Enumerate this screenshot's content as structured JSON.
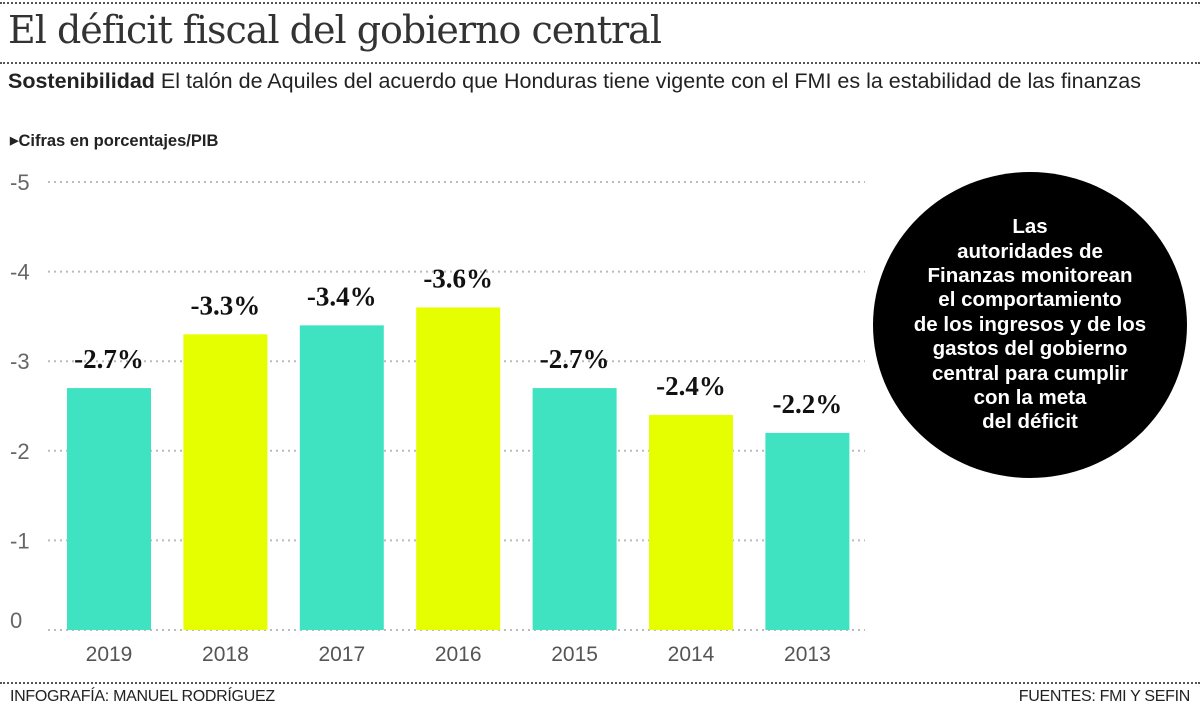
{
  "title": "El déficit fiscal del gobierno central",
  "subtitle_lead": "Sostenibilidad",
  "subtitle_text": "El talón de Aquiles del acuerdo que Honduras tiene vigente con el FMI es la estabilidad de las finanzas",
  "units_note": "Cifras en porcentajes/PIB",
  "callout": "Las\nautoridades de\nFinanzas monitorean\nel comportamiento\nde los ingresos y de los\ngastos del gobierno\ncentral para cumplir\ncon la meta\ndel déficit",
  "footer_left": "INFOGRAFÍA: MANUEL RODRÍGUEZ",
  "footer_right": "FUENTES: FMI Y SEFIN",
  "colors": {
    "teal": "#3fe3c2",
    "yellow": "#e5ff00",
    "callout_bg": "#000000"
  },
  "chart_data": {
    "type": "bar",
    "title": "El déficit fiscal del gobierno central",
    "xlabel": "",
    "ylabel": "",
    "categories": [
      "2019",
      "2018",
      "2017",
      "2016",
      "2015",
      "2014",
      "2013"
    ],
    "values": [
      -2.7,
      -3.3,
      -3.4,
      -3.6,
      -2.7,
      -2.4,
      -2.2
    ],
    "data_labels": [
      "-2.7%",
      "-3.3%",
      "-3.4%",
      "-3.6%",
      "-2.7%",
      "-2.4%",
      "-2.2%"
    ],
    "bar_colors": [
      "#3fe3c2",
      "#e5ff00",
      "#3fe3c2",
      "#e5ff00",
      "#3fe3c2",
      "#e5ff00",
      "#3fe3c2"
    ],
    "yticks": [
      "-5",
      "-4",
      "-3",
      "-2",
      "-1",
      "0"
    ],
    "ylim": [
      0,
      -5
    ],
    "grid": true,
    "legend": "none"
  }
}
